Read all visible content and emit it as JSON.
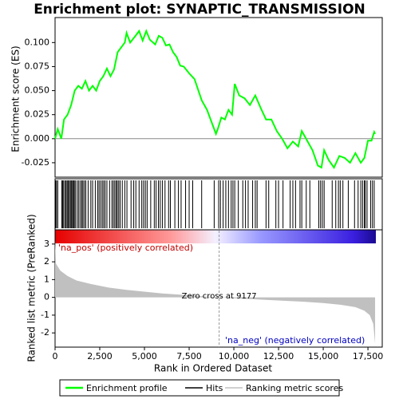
{
  "chart_data": [
    {
      "type": "line",
      "title": "Enrichment plot: SYNAPTIC_TRANSMISSION",
      "ylabel": "Enrichment score (ES)",
      "xlim": [
        0,
        18300
      ],
      "ylim": [
        -0.04,
        0.126
      ],
      "yticks": [
        -0.025,
        {
          "value": 0,
          "label": "0.000"
        },
        0.025,
        {
          "value": 0.05,
          "label": "0.050"
        },
        0.075,
        {
          "value": 0.1,
          "label": "0.100"
        }
      ],
      "series": [
        {
          "name": "Enrichment profile",
          "color": "#00ff00",
          "x": [
            0,
            150,
            350,
            500,
            700,
            900,
            1100,
            1300,
            1500,
            1700,
            1900,
            2100,
            2300,
            2500,
            2700,
            2900,
            3100,
            3300,
            3500,
            3700,
            3900,
            4000,
            4200,
            4500,
            4700,
            4900,
            5100,
            5300,
            5600,
            5800,
            6000,
            6200,
            6400,
            6600,
            6800,
            7000,
            7200,
            7500,
            7800,
            8200,
            8500,
            8800,
            9000,
            9100,
            9300,
            9500,
            9700,
            9900,
            10050,
            10300,
            10600,
            10900,
            11200,
            11500,
            11800,
            12100,
            12400,
            12700,
            13000,
            13300,
            13600,
            13800,
            14100,
            14400,
            14700,
            14900,
            15050,
            15300,
            15600,
            15900,
            16200,
            16500,
            16800,
            17100,
            17300,
            17500,
            17700,
            17850,
            17900
          ],
          "values": [
            0,
            0.01,
            0.0,
            0.02,
            0.025,
            0.035,
            0.05,
            0.055,
            0.052,
            0.06,
            0.05,
            0.055,
            0.05,
            0.06,
            0.065,
            0.073,
            0.065,
            0.072,
            0.09,
            0.095,
            0.1,
            0.11,
            0.1,
            0.107,
            0.112,
            0.102,
            0.112,
            0.103,
            0.098,
            0.107,
            0.105,
            0.097,
            0.098,
            0.09,
            0.085,
            0.076,
            0.075,
            0.068,
            0.062,
            0.04,
            0.03,
            0.015,
            0.005,
            0.01,
            0.022,
            0.02,
            0.03,
            0.025,
            0.057,
            0.045,
            0.042,
            0.035,
            0.045,
            0.032,
            0.02,
            0.02,
            0.008,
            0.0,
            -0.01,
            -0.003,
            -0.008,
            0.008,
            -0.002,
            -0.012,
            -0.028,
            -0.03,
            -0.012,
            -0.022,
            -0.03,
            -0.018,
            -0.02,
            -0.025,
            -0.015,
            -0.025,
            -0.02,
            -0.002,
            -0.002,
            0.007,
            0.005
          ]
        }
      ]
    },
    {
      "type": "rug",
      "xlim": [
        0,
        18300
      ],
      "series": [
        {
          "name": "Hits",
          "color": "#000000",
          "x": [
            30,
            80,
            150,
            380,
            430,
            480,
            560,
            620,
            680,
            740,
            800,
            860,
            920,
            980,
            1030,
            1080,
            1150,
            1250,
            1330,
            1420,
            1500,
            1560,
            1640,
            1720,
            1850,
            2000,
            2100,
            2250,
            2380,
            2460,
            2550,
            2640,
            2720,
            2800,
            2900,
            3050,
            3180,
            3260,
            3340,
            3420,
            3480,
            3560,
            3640,
            3760,
            3900,
            4020,
            4250,
            4400,
            4520,
            4700,
            4850,
            4950,
            5050,
            5150,
            5350,
            5550,
            5650,
            5780,
            5880,
            6000,
            6150,
            6350,
            6450,
            6700,
            6900,
            7050,
            7300,
            7500,
            7700,
            8200,
            8900,
            9150,
            9250,
            9400,
            9550,
            9700,
            9850,
            9950,
            10050,
            10250,
            10500,
            10650,
            10800,
            11050,
            11200,
            11300,
            11800,
            11950,
            12350,
            12500,
            12750,
            13150,
            13300,
            13450,
            13700,
            13800,
            14050,
            14250,
            14750,
            14850,
            14950,
            15050,
            15500,
            15700,
            15850,
            15950,
            16100,
            16400,
            16750,
            16950,
            17100,
            17200,
            17300,
            17350,
            17450,
            17650,
            17750,
            17850
          ]
        }
      ]
    },
    {
      "type": "area",
      "ylabel": "Ranked list metric (PreRanked)",
      "xlabel": "Rank in Ordered Dataset",
      "xlim": [
        0,
        18300
      ],
      "ylim": [
        -2.8,
        3.8
      ],
      "xticks": [
        0,
        {
          "value": 2500,
          "label": "2,500"
        },
        {
          "value": 5000,
          "label": "5,000"
        },
        {
          "value": 7500,
          "label": "7,500"
        },
        {
          "value": 10000,
          "label": "10,000"
        },
        {
          "value": 12500,
          "label": "12,500"
        },
        {
          "value": 15000,
          "label": "15,000"
        },
        {
          "value": 17500,
          "label": "17,500"
        }
      ],
      "yticks": [
        3,
        2,
        1,
        0,
        -1,
        -2
      ],
      "pos_label": "'na_pos' (positively correlated)",
      "neg_label": "'na_neg' (negatively correlated)",
      "zero_cross": {
        "value": 9177,
        "label": "Zero cross at 9177"
      },
      "series": [
        {
          "name": "Ranking metric scores",
          "color": "#c0c0c0",
          "x": [
            0,
            50,
            300,
            700,
            1200,
            2000,
            3000,
            4000,
            5000,
            6000,
            7000,
            8000,
            9177,
            10000,
            11000,
            12000,
            13000,
            14000,
            15000,
            16000,
            16800,
            17300,
            17600,
            17800,
            17900
          ],
          "values": [
            3.2,
            1.9,
            1.5,
            1.2,
            0.95,
            0.75,
            0.55,
            0.42,
            0.32,
            0.22,
            0.15,
            0.08,
            0,
            -0.05,
            -0.1,
            -0.15,
            -0.2,
            -0.25,
            -0.32,
            -0.42,
            -0.55,
            -0.75,
            -1.0,
            -1.5,
            -2.6
          ]
        }
      ]
    }
  ]
}
